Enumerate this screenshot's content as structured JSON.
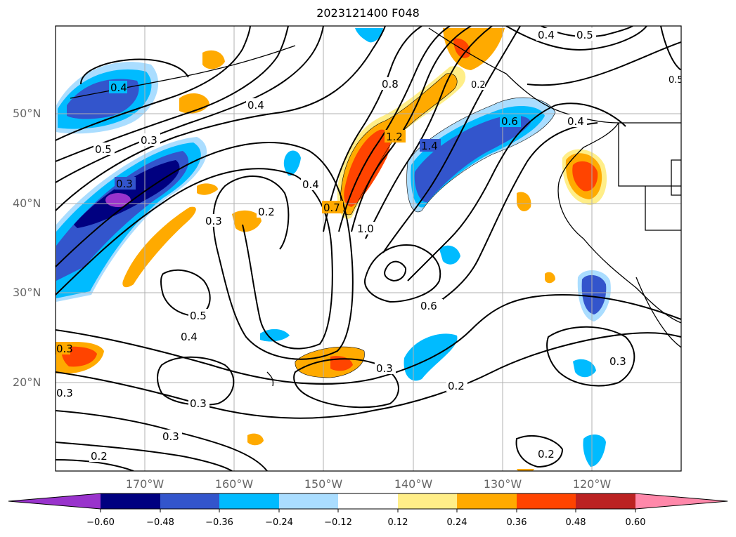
{
  "title": "2023121400 F048",
  "lat_labels": [
    "50°N",
    "40°N",
    "30°N",
    "20°N"
  ],
  "lon_labels": [
    "170°W",
    "160°W",
    "150°W",
    "140°W",
    "130°W",
    "120°W"
  ],
  "contour_labels": [
    "0.4",
    "0.5",
    "0.4",
    "0.4",
    "0.3",
    "0.5",
    "0.3",
    "0.2",
    "0.4",
    "0.3",
    "0.7",
    "0.8",
    "1.2",
    "1.4",
    "0.6",
    "0.4",
    "1.0",
    "0.6",
    "0.5",
    "0.4",
    "0.3",
    "0.3",
    "0.2",
    "0.3",
    "0.2",
    "0.3",
    "0.3",
    "0.2",
    "0.3",
    "0.5",
    "0.2"
  ],
  "colorbar": {
    "ticks": [
      "−0.60",
      "−0.48",
      "−0.36",
      "−0.24",
      "−0.12",
      "0.12",
      "0.24",
      "0.36",
      "0.48",
      "0.60"
    ],
    "colors": [
      "#9933cc",
      "#000080",
      "#3355cc",
      "#00bbff",
      "#aaddff",
      "#ffffff",
      "#ffee88",
      "#ffaa00",
      "#ff4400",
      "#bb2222",
      "#ff88aa"
    ]
  },
  "colors": {
    "darkblue": "#000080",
    "blue": "#3355cc",
    "cyan": "#00bbff",
    "lightblue": "#aaddff",
    "yellow": "#ffee88",
    "orange": "#ffaa00",
    "red": "#ff4400",
    "purple": "#9933cc"
  }
}
